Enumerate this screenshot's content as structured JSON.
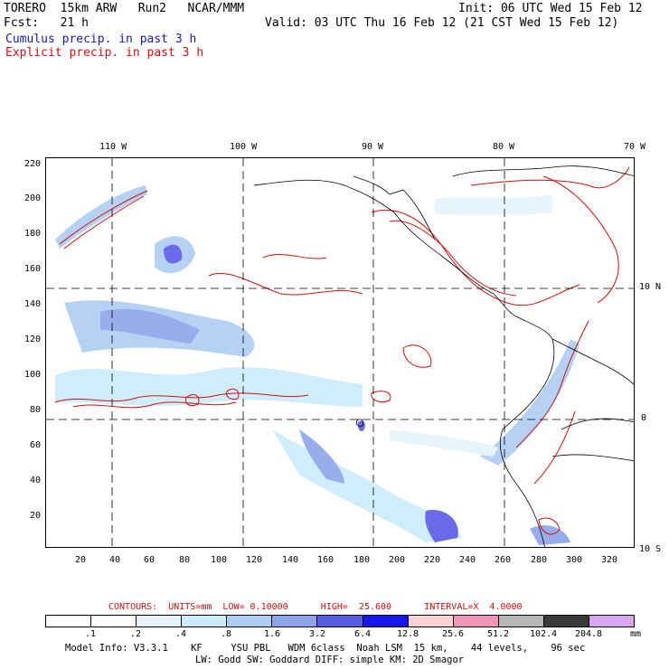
{
  "header": {
    "model": "TORERO  15km ARW   Run2   NCAR/MMM",
    "init": "Init: 06 UTC Wed 15 Feb 12",
    "fcst": "Fcst:   21 h",
    "valid": "Valid: 03 UTC Thu 16 Feb 12 (21 CST Wed 15 Feb 12)",
    "cumulus": "Cumulus precip. in past 3 h",
    "explicit": "Explicit precip. in past 3 h"
  },
  "map": {
    "lon_labels": [
      "110 W",
      "100 W",
      "90 W",
      "80 W",
      "70 W"
    ],
    "lat_labels": [
      "10 N",
      "0",
      "10 S"
    ],
    "y_ticks": [
      "220",
      "200",
      "180",
      "160",
      "140",
      "120",
      "100",
      "80",
      "60",
      "40",
      "20"
    ],
    "x_ticks": [
      "20",
      "40",
      "60",
      "80",
      "100",
      "120",
      "140",
      "160",
      "180",
      "200",
      "220",
      "240",
      "260",
      "280",
      "300",
      "320"
    ]
  },
  "contours": "CONTOURS:  UNITS=mm  LOW= 0.10000      HIGH=  25.600      INTERVAL=X  4.0000",
  "colorbar": {
    "labels": [
      ".1",
      ".2",
      ".4",
      ".8",
      "1.6",
      "3.2",
      "6.4",
      "12.8",
      "25.6",
      "51.2",
      "102.4",
      "204.8"
    ],
    "unit": "mm",
    "colors": [
      "#ffffff",
      "#ffffff",
      "#e6f3fb",
      "#ccecfb",
      "#aecdf2",
      "#8ea4ea",
      "#5a5ce6",
      "#1818ee",
      "#ffd3d3",
      "#f294b8",
      "#b6b6b6",
      "#3a3a3a",
      "#d6a6f0"
    ]
  },
  "info": {
    "line1": "Model Info: V3.3.1    KF     YSU PBL   WDM 6class  Noah LSM  15 km,    44 levels,    96 sec",
    "line2": "LW: Godd SW: Goddard DIFF: simple KM: 2D Smagor"
  }
}
